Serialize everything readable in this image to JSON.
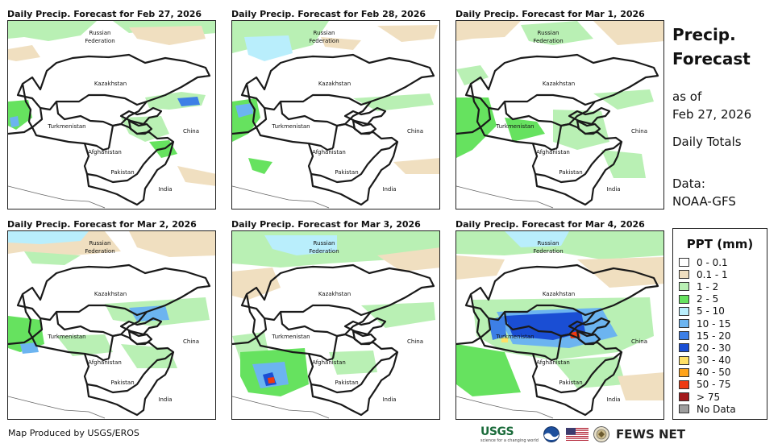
{
  "panels": [
    {
      "title": "Daily Precip. Forecast for Feb 27, 2026",
      "variant": "d1"
    },
    {
      "title": "Daily Precip. Forecast for Feb 28, 2026",
      "variant": "d2"
    },
    {
      "title": "Daily Precip. Forecast for Mar 1, 2026",
      "variant": "d3"
    },
    {
      "title": "Daily Precip. Forecast for Mar 2, 2026",
      "variant": "d4"
    },
    {
      "title": "Daily Precip. Forecast for Mar 3, 2026",
      "variant": "d5"
    },
    {
      "title": "Daily Precip. Forecast for Mar 4, 2026",
      "variant": "d6"
    }
  ],
  "map_labels": {
    "russia": "Russian",
    "federation": "Federation",
    "kazakhstan": "Kazakhstan",
    "turkmenistan": "Turkmenistan",
    "afghanistan": "Afghanistan",
    "pakistan": "Pakistan",
    "india": "India",
    "china": "China"
  },
  "sidebar": {
    "title_line1": "Precip.",
    "title_line2": "Forecast",
    "asof_label": "as of",
    "asof_date": "Feb 27, 2026",
    "totals": "Daily Totals",
    "data_label": "Data:",
    "data_source": "NOAA-GFS"
  },
  "legend": {
    "title": "PPT (mm)",
    "items": [
      {
        "label": "0 - 0.1",
        "color": "#ffffff"
      },
      {
        "label": "0.1 - 1",
        "color": "#f0dfc0"
      },
      {
        "label": "1 - 2",
        "color": "#b9f0b4"
      },
      {
        "label": "2 - 5",
        "color": "#66e25f"
      },
      {
        "label": "5 - 10",
        "color": "#b9eefc"
      },
      {
        "label": "10 - 15",
        "color": "#6cb4f0"
      },
      {
        "label": "15 - 20",
        "color": "#3d7fe6"
      },
      {
        "label": "20 - 30",
        "color": "#1a4ed4"
      },
      {
        "label": "30 - 40",
        "color": "#ffe066"
      },
      {
        "label": "40 - 50",
        "color": "#ffa31a"
      },
      {
        "label": "50 - 75",
        "color": "#ee3a12"
      },
      {
        "label": "> 75",
        "color": "#a3181a"
      },
      {
        "label": "No Data",
        "color": "#9e9e9e"
      }
    ]
  },
  "footer": {
    "credit": "Map Produced by USGS/EROS",
    "usgs": "USGS",
    "usgs_tagline": "science for a changing world",
    "fews": "FEWS NET"
  }
}
